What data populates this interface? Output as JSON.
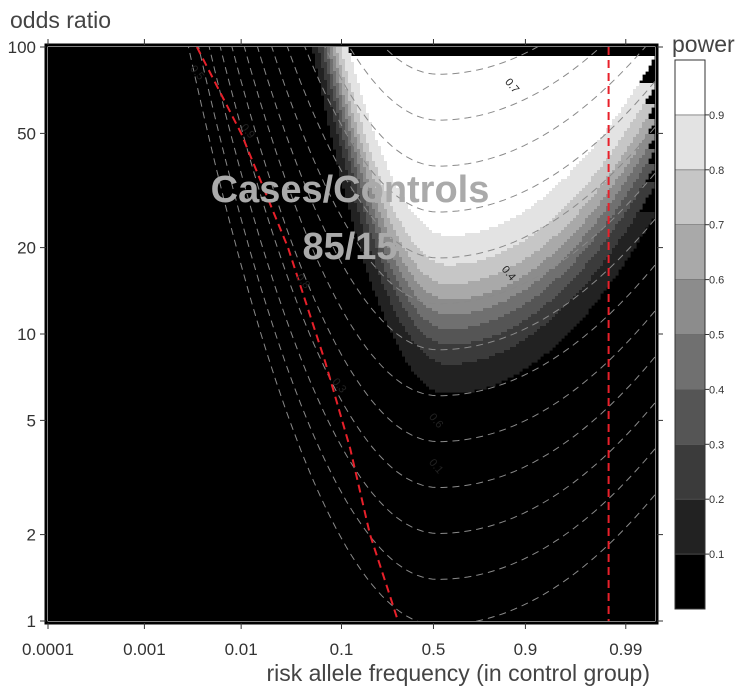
{
  "chart_data": {
    "type": "heatmap",
    "subtype": "filled-contour",
    "xlabel": "risk allele frequency (in control group)",
    "ylabel": "odds ratio",
    "colorbar_label": "power",
    "x_scale": "logit",
    "y_scale": "log",
    "xlim": [
      0.0001,
      0.995
    ],
    "ylim": [
      1,
      100
    ],
    "x_ticks": [
      {
        "value": 0.0001,
        "label": "0.0001"
      },
      {
        "value": 0.001,
        "label": "0.001"
      },
      {
        "value": 0.01,
        "label": "0.01"
      },
      {
        "value": 0.1,
        "label": "0.1"
      },
      {
        "value": 0.5,
        "label": "0.5"
      },
      {
        "value": 0.9,
        "label": "0.9"
      },
      {
        "value": 0.99,
        "label": "0.99"
      }
    ],
    "y_ticks": [
      {
        "value": 1,
        "label": "1"
      },
      {
        "value": 2,
        "label": "2"
      },
      {
        "value": 5,
        "label": "5"
      },
      {
        "value": 10,
        "label": "10"
      },
      {
        "value": 20,
        "label": "20"
      },
      {
        "value": 50,
        "label": "50"
      },
      {
        "value": 100,
        "label": "100"
      }
    ],
    "power_levels": [
      {
        "value": 0.1,
        "label": "0.1",
        "color": "#000000"
      },
      {
        "value": 0.2,
        "label": "0.2",
        "color": "#222222"
      },
      {
        "value": 0.3,
        "label": "0.3",
        "color": "#3b3b3b"
      },
      {
        "value": 0.4,
        "label": "0.4",
        "color": "#555555"
      },
      {
        "value": 0.5,
        "label": "0.5",
        "color": "#707070"
      },
      {
        "value": 0.6,
        "label": "0.6",
        "color": "#8c8c8c"
      },
      {
        "value": 0.7,
        "label": "0.7",
        "color": "#a9a9a9"
      },
      {
        "value": 0.8,
        "label": "0.8",
        "color": "#c6c6c6"
      },
      {
        "value": 0.9,
        "label": "0.9",
        "color": "#e3e3e3"
      }
    ],
    "colorbar_top_color": "#ffffff",
    "contour_labels": [
      {
        "text": "0.5",
        "x": 0.0033,
        "y": 80
      },
      {
        "text": "0.9",
        "x": 0.011,
        "y": 50
      },
      {
        "text": "0.8",
        "x": 0.04,
        "y": 15
      },
      {
        "text": "0.3",
        "x": 0.09,
        "y": 6.5
      },
      {
        "text": "0.6",
        "x": 0.5,
        "y": 4.9
      },
      {
        "text": "0.1",
        "x": 0.5,
        "y": 3.4
      },
      {
        "text": "0.4",
        "x": 0.85,
        "y": 16
      },
      {
        "text": "0.7",
        "x": 0.86,
        "y": 72
      }
    ],
    "red_dashed_lines": [
      {
        "points": [
          [
            0.0035,
            100
          ],
          [
            0.01,
            50
          ],
          [
            0.03,
            20
          ],
          [
            0.07,
            8
          ],
          [
            0.12,
            4
          ],
          [
            0.18,
            2
          ],
          [
            0.25,
            1.3
          ],
          [
            0.3,
            1
          ]
        ]
      },
      {
        "points": [
          [
            0.985,
            100
          ],
          [
            0.985,
            1
          ]
        ]
      }
    ],
    "background_color": "#000000",
    "gridline_color": "#8a8a8a",
    "annotation": {
      "line1": "Cases/Controls",
      "line2": "85/15"
    }
  }
}
